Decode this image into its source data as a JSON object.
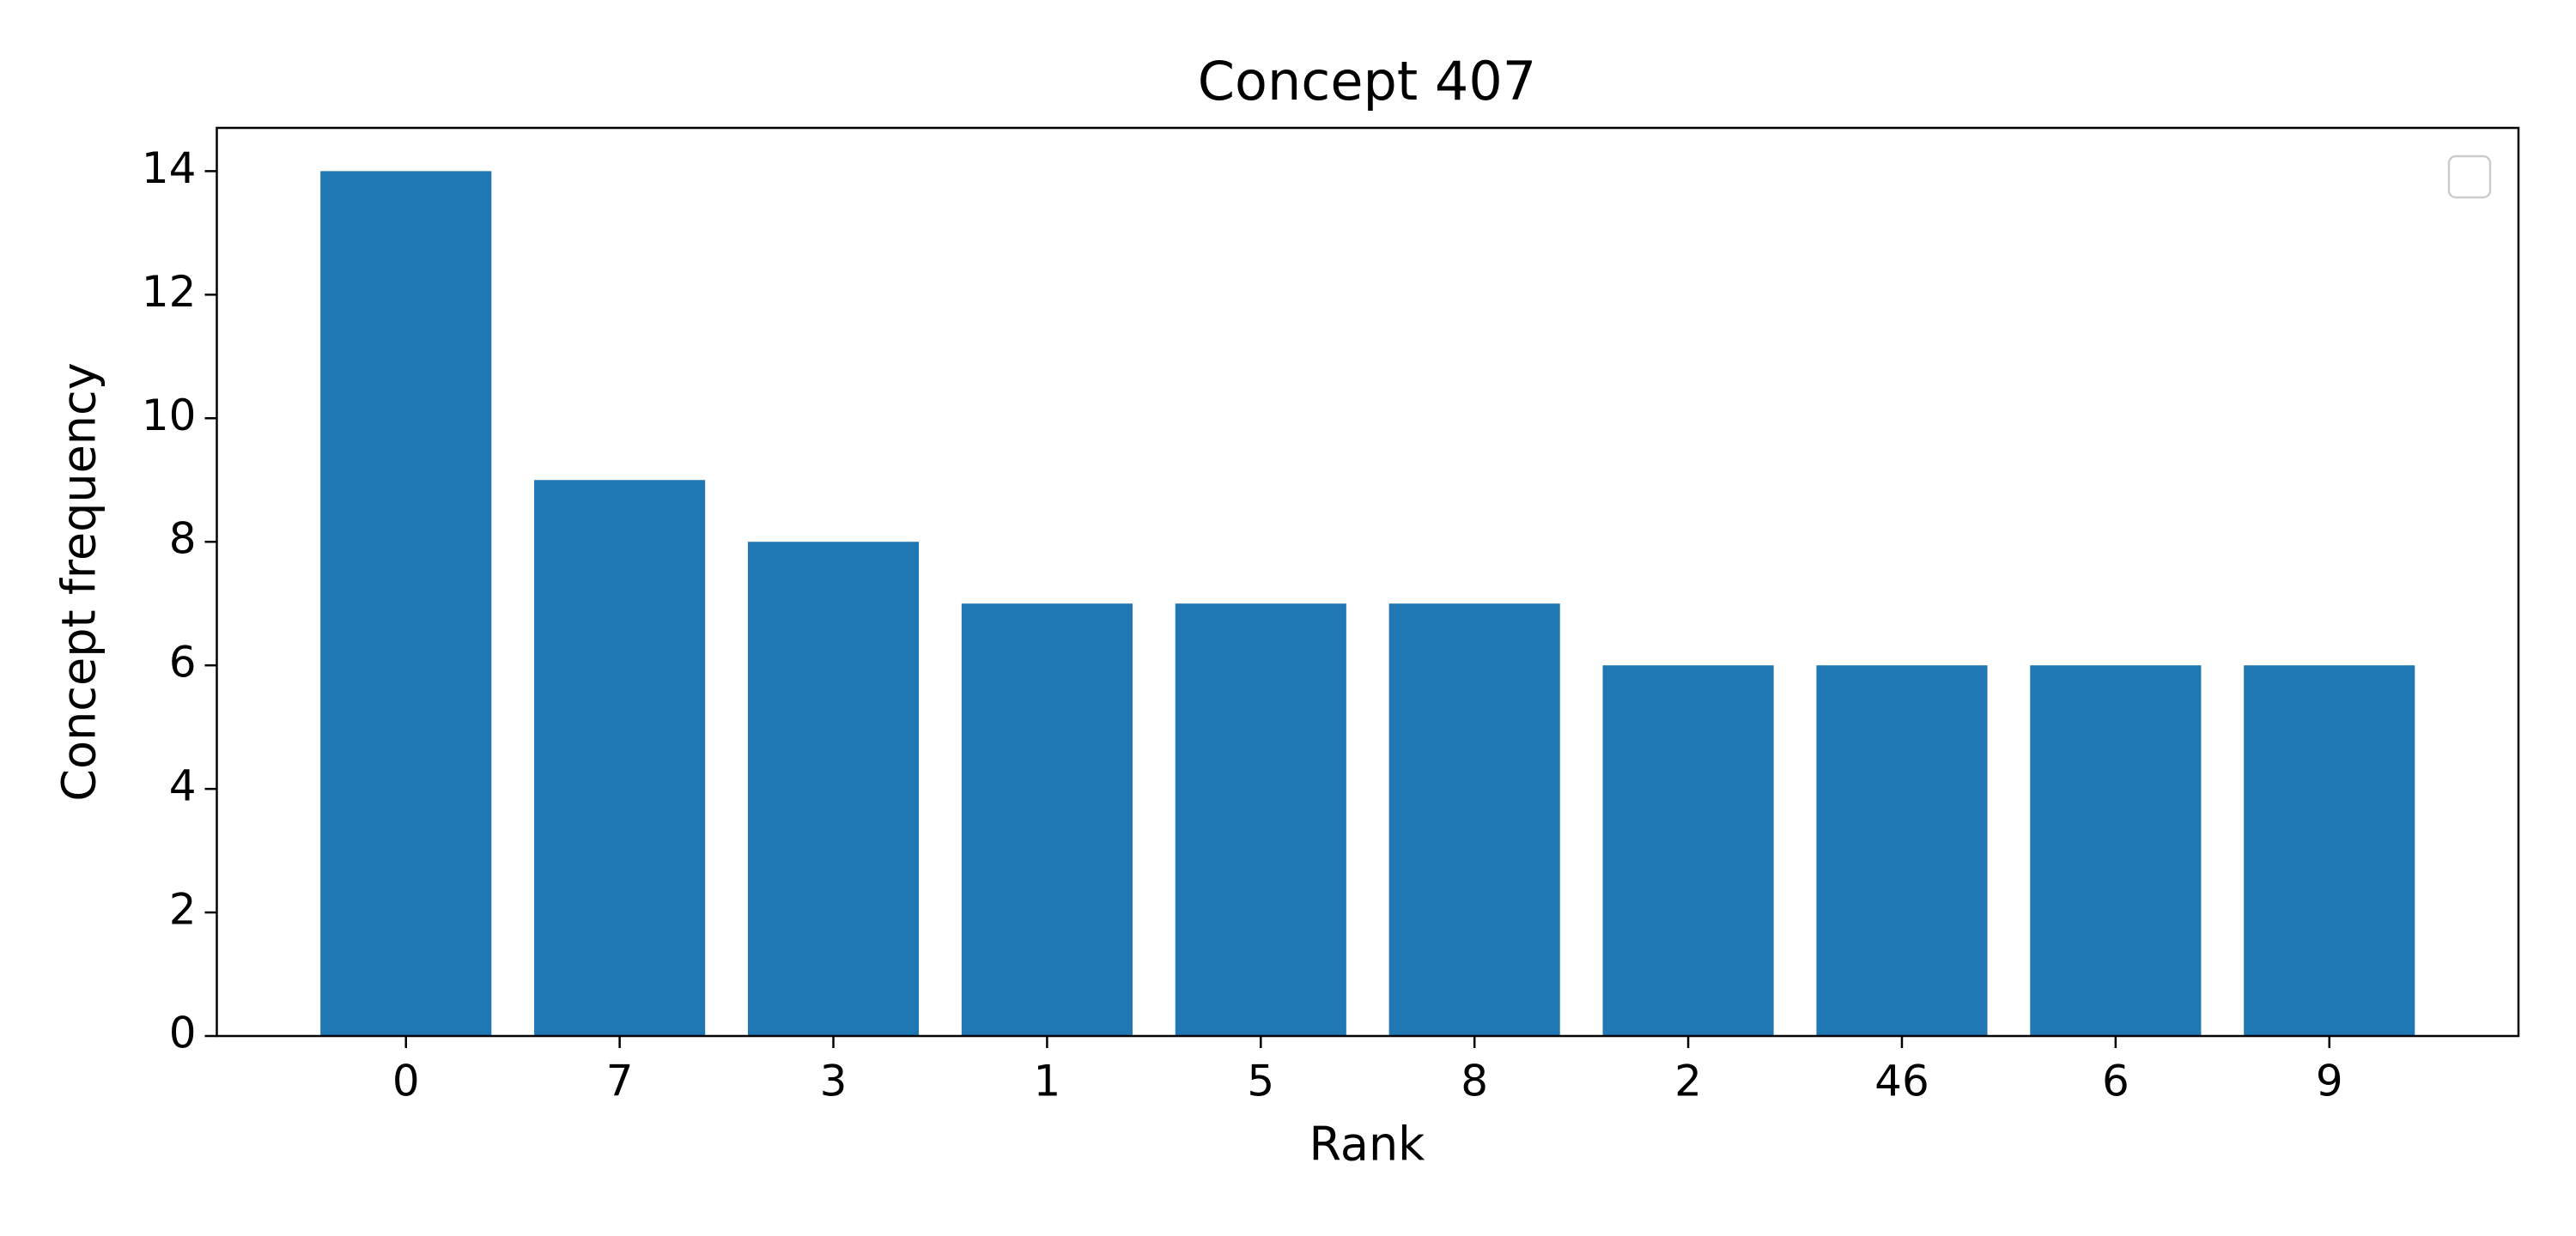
{
  "chart_data": {
    "type": "bar",
    "title": "Concept 407",
    "x_label": "Rank",
    "y_label": "Concept frequency",
    "categories": [
      "0",
      "7",
      "3",
      "1",
      "5",
      "8",
      "2",
      "46",
      "6",
      "9"
    ],
    "values": [
      14,
      9,
      8,
      7,
      7,
      7,
      6,
      6,
      6,
      6
    ],
    "color": "#1f77b4",
    "ylim": [
      0,
      14.7
    ],
    "yticks": [
      0,
      2,
      4,
      6,
      8,
      10,
      12,
      14
    ],
    "grid": false
  }
}
